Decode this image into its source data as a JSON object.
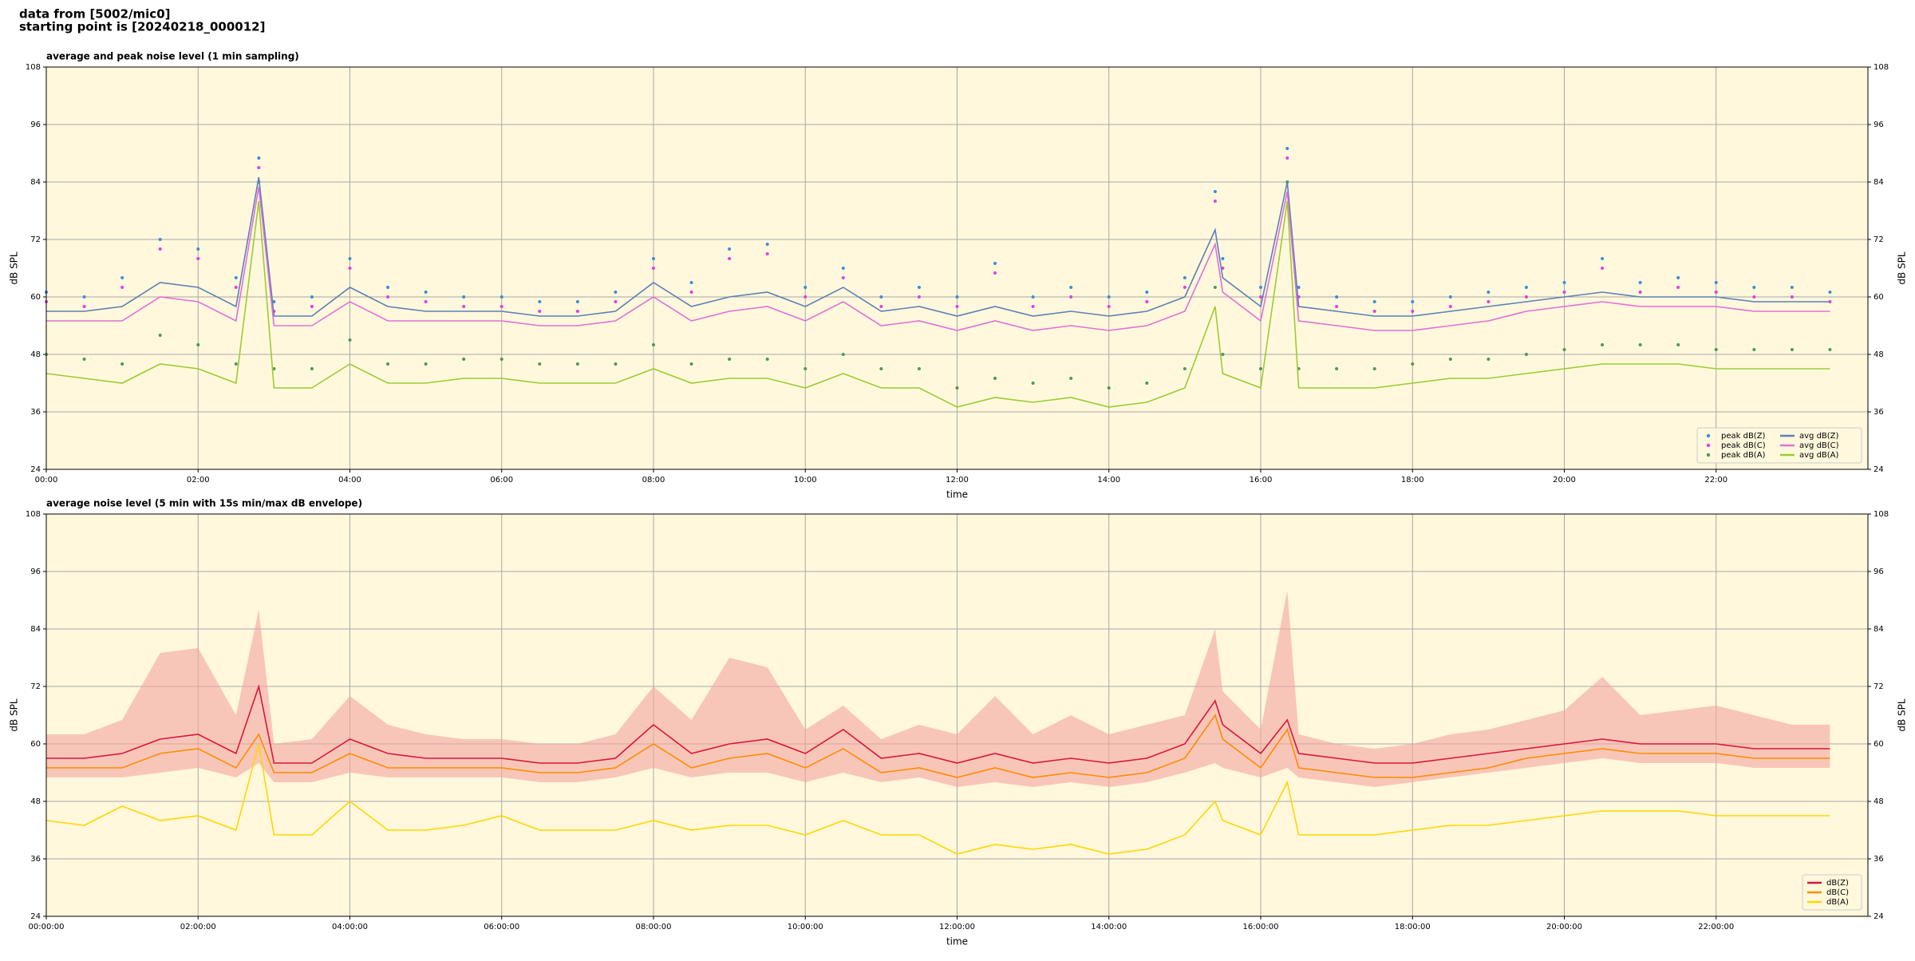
{
  "header": {
    "line1": "data from [5002/mic0]",
    "line2": "starting point is [20240218_000012]"
  },
  "chart_data": [
    {
      "type": "line",
      "title": "average and peak noise level (1 min sampling)",
      "xlabel": "time",
      "ylabel": "dB SPL",
      "x": [
        0,
        0.5,
        1,
        1.5,
        2,
        2.5,
        2.8,
        3,
        3.5,
        4,
        4.5,
        5,
        5.5,
        6,
        6.5,
        7,
        7.5,
        8,
        8.5,
        9,
        9.5,
        10,
        10.5,
        11,
        11.5,
        12,
        12.5,
        13,
        13.5,
        14,
        14.5,
        15,
        15.4,
        15.5,
        16,
        16.35,
        16.5,
        17,
        17.5,
        18,
        18.5,
        19,
        19.5,
        20,
        20.5,
        21,
        21.5,
        22,
        22.5,
        23,
        23.5
      ],
      "xlim": [
        0,
        24
      ],
      "xticks": [
        {
          "value": 0,
          "label": "00:00"
        },
        {
          "value": 2,
          "label": "02:00"
        },
        {
          "value": 4,
          "label": "04:00"
        },
        {
          "value": 6,
          "label": "06:00"
        },
        {
          "value": 8,
          "label": "08:00"
        },
        {
          "value": 10,
          "label": "10:00"
        },
        {
          "value": 12,
          "label": "12:00"
        },
        {
          "value": 14,
          "label": "14:00"
        },
        {
          "value": 16,
          "label": "16:00"
        },
        {
          "value": 18,
          "label": "18:00"
        },
        {
          "value": 20,
          "label": "20:00"
        },
        {
          "value": 22,
          "label": "22:00"
        }
      ],
      "ylim": [
        24,
        108
      ],
      "yticks": [
        24,
        36,
        48,
        60,
        72,
        84,
        96,
        108
      ],
      "grid": true,
      "legend": "lower right",
      "legend_columns": 2,
      "series": [
        {
          "name": "peak dB(Z)",
          "style": "points",
          "color": "#3a8fd6",
          "values": [
            61,
            60,
            64,
            72,
            70,
            64,
            89,
            59,
            60,
            68,
            62,
            61,
            60,
            60,
            59,
            59,
            61,
            68,
            63,
            70,
            71,
            62,
            66,
            60,
            62,
            60,
            67,
            60,
            62,
            60,
            61,
            64,
            82,
            68,
            62,
            91,
            62,
            60,
            59,
            59,
            60,
            61,
            62,
            63,
            68,
            63,
            64,
            63,
            62,
            62,
            61
          ]
        },
        {
          "name": "peak dB(C)",
          "style": "points",
          "color": "#e040e0",
          "values": [
            59,
            58,
            62,
            70,
            68,
            62,
            87,
            57,
            58,
            66,
            60,
            59,
            58,
            58,
            57,
            57,
            59,
            66,
            61,
            68,
            69,
            60,
            64,
            58,
            60,
            58,
            65,
            58,
            60,
            58,
            59,
            62,
            80,
            66,
            60,
            89,
            60,
            58,
            57,
            57,
            58,
            59,
            60,
            61,
            66,
            61,
            62,
            61,
            60,
            60,
            59
          ]
        },
        {
          "name": "peak dB(A)",
          "style": "points",
          "color": "#4a9a5a",
          "values": [
            48,
            47,
            46,
            52,
            50,
            46,
            84,
            45,
            45,
            51,
            46,
            46,
            47,
            47,
            46,
            46,
            46,
            50,
            46,
            47,
            47,
            45,
            48,
            45,
            45,
            41,
            43,
            42,
            43,
            41,
            42,
            45,
            62,
            48,
            45,
            84,
            45,
            45,
            45,
            46,
            47,
            47,
            48,
            49,
            50,
            50,
            50,
            49,
            49,
            49,
            49
          ]
        },
        {
          "name": "avg dB(Z)",
          "style": "line",
          "color": "#5b80b8",
          "values": [
            57,
            57,
            58,
            63,
            62,
            58,
            85,
            56,
            56,
            62,
            58,
            57,
            57,
            57,
            56,
            56,
            57,
            63,
            58,
            60,
            61,
            58,
            62,
            57,
            58,
            56,
            58,
            56,
            57,
            56,
            57,
            60,
            74,
            64,
            58,
            84,
            58,
            57,
            56,
            56,
            57,
            58,
            59,
            60,
            61,
            60,
            60,
            60,
            59,
            59,
            59
          ]
        },
        {
          "name": "avg dB(C)",
          "style": "line",
          "color": "#e070d8",
          "values": [
            55,
            55,
            55,
            60,
            59,
            55,
            83,
            54,
            54,
            59,
            55,
            55,
            55,
            55,
            54,
            54,
            55,
            60,
            55,
            57,
            58,
            55,
            59,
            54,
            55,
            53,
            55,
            53,
            54,
            53,
            54,
            57,
            71,
            61,
            55,
            82,
            55,
            54,
            53,
            53,
            54,
            55,
            57,
            58,
            59,
            58,
            58,
            58,
            57,
            57,
            57
          ]
        },
        {
          "name": "avg dB(A)",
          "style": "line",
          "color": "#9acd32",
          "values": [
            44,
            43,
            42,
            46,
            45,
            42,
            80,
            41,
            41,
            46,
            42,
            42,
            43,
            43,
            42,
            42,
            42,
            45,
            42,
            43,
            43,
            41,
            44,
            41,
            41,
            37,
            39,
            38,
            39,
            37,
            38,
            41,
            58,
            44,
            41,
            80,
            41,
            41,
            41,
            42,
            43,
            43,
            44,
            45,
            46,
            46,
            46,
            45,
            45,
            45,
            45
          ]
        }
      ]
    },
    {
      "type": "line",
      "title": "average noise level (5 min with 15s min/max dB envelope)",
      "xlabel": "time",
      "ylabel": "dB SPL",
      "x": [
        0,
        0.5,
        1,
        1.5,
        2,
        2.5,
        2.8,
        3,
        3.5,
        4,
        4.5,
        5,
        5.5,
        6,
        6.5,
        7,
        7.5,
        8,
        8.5,
        9,
        9.5,
        10,
        10.5,
        11,
        11.5,
        12,
        12.5,
        13,
        13.5,
        14,
        14.5,
        15,
        15.4,
        15.5,
        16,
        16.35,
        16.5,
        17,
        17.5,
        18,
        18.5,
        19,
        19.5,
        20,
        20.5,
        21,
        21.5,
        22,
        22.5,
        23,
        23.5
      ],
      "xlim": [
        0,
        24
      ],
      "xticks": [
        {
          "value": 0,
          "label": "00:00:00"
        },
        {
          "value": 2,
          "label": "02:00:00"
        },
        {
          "value": 4,
          "label": "04:00:00"
        },
        {
          "value": 6,
          "label": "06:00:00"
        },
        {
          "value": 8,
          "label": "08:00:00"
        },
        {
          "value": 10,
          "label": "10:00:00"
        },
        {
          "value": 12,
          "label": "12:00:00"
        },
        {
          "value": 14,
          "label": "14:00:00"
        },
        {
          "value": 16,
          "label": "16:00:00"
        },
        {
          "value": 18,
          "label": "18:00:00"
        },
        {
          "value": 20,
          "label": "20:00:00"
        },
        {
          "value": 22,
          "label": "22:00:00"
        }
      ],
      "ylim": [
        24,
        108
      ],
      "yticks": [
        24,
        36,
        48,
        60,
        72,
        84,
        96,
        108
      ],
      "grid": true,
      "legend": "lower right",
      "legend_columns": 1,
      "series": [
        {
          "name": "dB(Z)",
          "style": "line",
          "color": "#dc143c",
          "envelope_color": "#f4a5a0",
          "values": [
            57,
            57,
            58,
            61,
            62,
            58,
            72,
            56,
            56,
            61,
            58,
            57,
            57,
            57,
            56,
            56,
            57,
            64,
            58,
            60,
            61,
            58,
            63,
            57,
            58,
            56,
            58,
            56,
            57,
            56,
            57,
            60,
            69,
            64,
            58,
            65,
            58,
            57,
            56,
            56,
            57,
            58,
            59,
            60,
            61,
            60,
            60,
            60,
            59,
            59,
            59
          ],
          "envelope_min": [
            53,
            53,
            53,
            54,
            55,
            53,
            56,
            52,
            52,
            54,
            53,
            53,
            53,
            53,
            52,
            52,
            53,
            55,
            53,
            54,
            54,
            52,
            54,
            52,
            53,
            51,
            52,
            51,
            52,
            51,
            52,
            54,
            56,
            55,
            53,
            55,
            53,
            52,
            51,
            52,
            53,
            54,
            55,
            56,
            57,
            56,
            56,
            56,
            55,
            55,
            55
          ],
          "envelope_max": [
            62,
            62,
            65,
            79,
            80,
            66,
            88,
            60,
            61,
            70,
            64,
            62,
            61,
            61,
            60,
            60,
            62,
            72,
            65,
            78,
            76,
            63,
            68,
            61,
            64,
            62,
            70,
            62,
            66,
            62,
            64,
            66,
            84,
            71,
            63,
            92,
            62,
            60,
            59,
            60,
            62,
            63,
            65,
            67,
            74,
            66,
            67,
            68,
            66,
            64,
            64
          ]
        },
        {
          "name": "dB(C)",
          "style": "line",
          "color": "#ff8c00",
          "values": [
            55,
            55,
            55,
            58,
            59,
            55,
            62,
            54,
            54,
            58,
            55,
            55,
            55,
            55,
            54,
            54,
            55,
            60,
            55,
            57,
            58,
            55,
            59,
            54,
            55,
            53,
            55,
            53,
            54,
            53,
            54,
            57,
            66,
            61,
            55,
            63,
            55,
            54,
            53,
            53,
            54,
            55,
            57,
            58,
            59,
            58,
            58,
            58,
            57,
            57,
            57
          ]
        },
        {
          "name": "dB(A)",
          "style": "line",
          "color": "#ffd700",
          "values": [
            44,
            43,
            47,
            44,
            45,
            42,
            60,
            41,
            41,
            48,
            42,
            42,
            43,
            45,
            42,
            42,
            42,
            44,
            42,
            43,
            43,
            41,
            44,
            41,
            41,
            37,
            39,
            38,
            39,
            37,
            38,
            41,
            48,
            44,
            41,
            52,
            41,
            41,
            41,
            42,
            43,
            43,
            44,
            45,
            46,
            46,
            46,
            45,
            45,
            45,
            45
          ]
        }
      ]
    }
  ]
}
